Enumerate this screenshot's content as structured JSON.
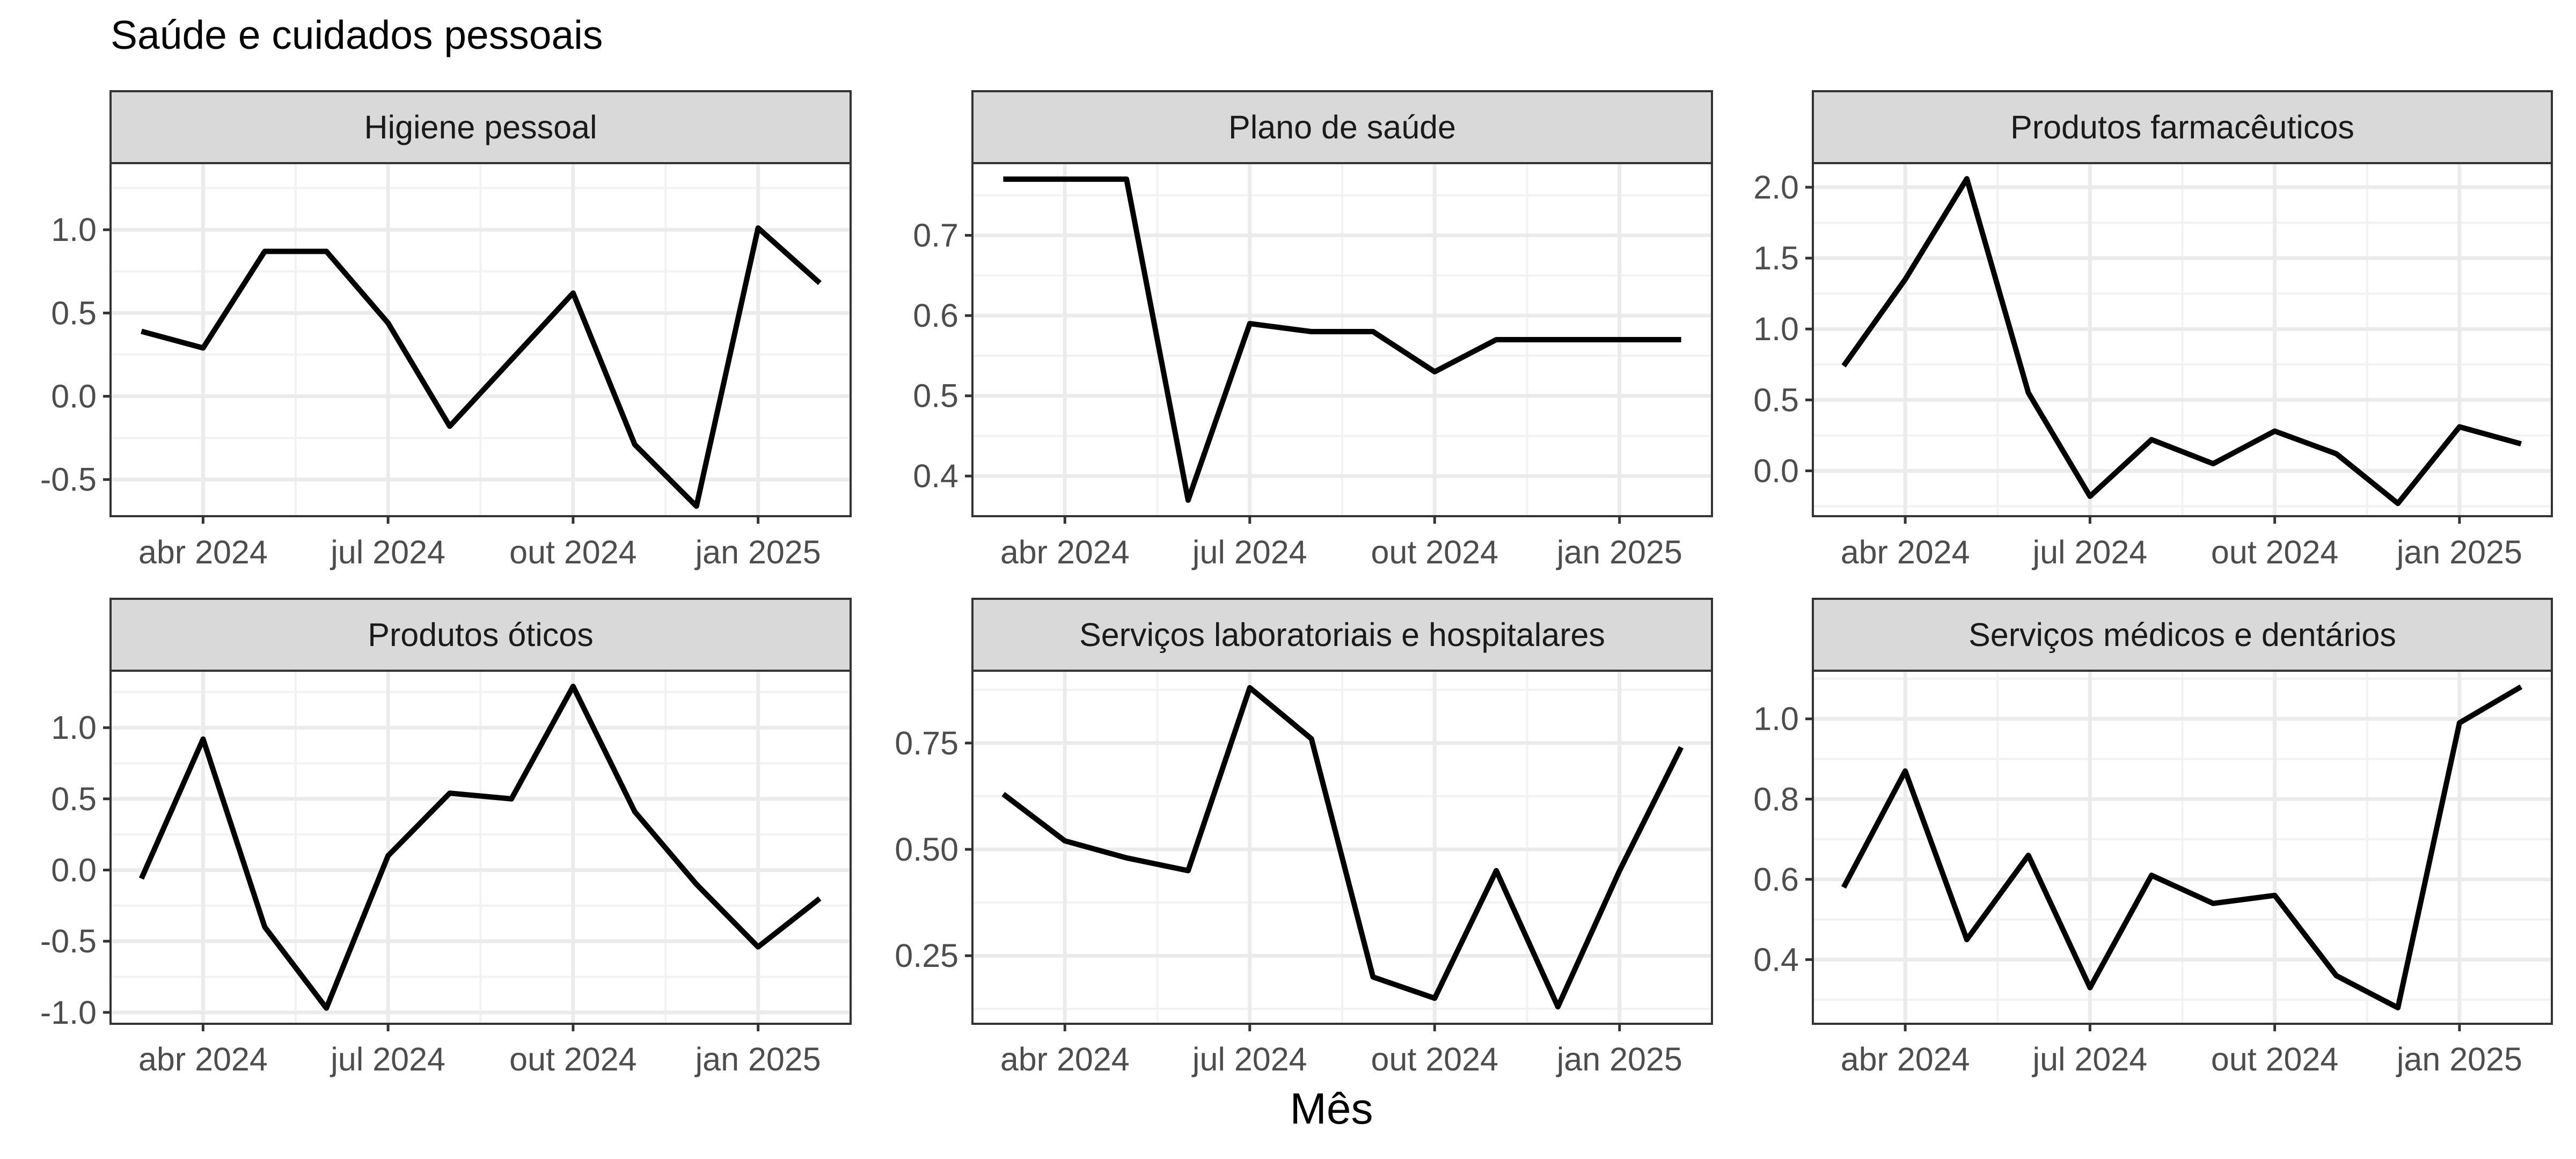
{
  "title": "Saúde e cuidados pessoais",
  "chart_data": {
    "type": "line",
    "title": "Saúde e cuidados pessoais",
    "xlabel": "Mês",
    "ylabel": "",
    "x": [
      "2024-03",
      "2024-04",
      "2024-05",
      "2024-06",
      "2024-07",
      "2024-08",
      "2024-09",
      "2024-10",
      "2024-11",
      "2024-12",
      "2025-01",
      "2025-02"
    ],
    "x_tick_labels": [
      "abr 2024",
      "jul 2024",
      "out 2024",
      "jan 2025"
    ],
    "x_tick_dates": [
      "2024-04",
      "2024-07",
      "2024-10",
      "2025-01"
    ],
    "grid": true,
    "line_color": "#000000",
    "panels": [
      {
        "name": "Higiene pessoal",
        "values": [
          0.39,
          0.29,
          0.87,
          0.87,
          0.44,
          -0.18,
          0.22,
          0.62,
          -0.29,
          -0.66,
          1.01,
          0.68
        ],
        "ylim": [
          -0.72,
          1.4
        ],
        "yticks": [
          -0.5,
          0.0,
          0.5,
          1.0
        ],
        "ytick_labels": [
          "-0.5",
          "0.0",
          "0.5",
          "1.0"
        ]
      },
      {
        "name": "Plano de saúde",
        "values": [
          0.77,
          0.77,
          0.77,
          0.37,
          0.59,
          0.58,
          0.58,
          0.53,
          0.57,
          0.57,
          0.57,
          0.57
        ],
        "ylim": [
          0.35,
          0.79
        ],
        "yticks": [
          0.4,
          0.5,
          0.6,
          0.7
        ],
        "ytick_labels": [
          "0.4",
          "0.5",
          "0.6",
          "0.7"
        ]
      },
      {
        "name": "Produtos farmacêuticos",
        "values": [
          0.74,
          1.35,
          2.06,
          0.55,
          -0.18,
          0.22,
          0.05,
          0.28,
          0.12,
          -0.23,
          0.31,
          0.19
        ],
        "ylim": [
          -0.32,
          2.17
        ],
        "yticks": [
          0.0,
          0.5,
          1.0,
          1.5,
          2.0
        ],
        "ytick_labels": [
          "0.0",
          "0.5",
          "1.0",
          "1.5",
          "2.0"
        ]
      },
      {
        "name": "Produtos óticos",
        "values": [
          -0.06,
          0.92,
          -0.4,
          -0.97,
          0.1,
          0.54,
          0.5,
          1.29,
          0.41,
          -0.1,
          -0.54,
          -0.2
        ],
        "ylim": [
          -1.08,
          1.4
        ],
        "yticks": [
          -1.0,
          -0.5,
          0.0,
          0.5,
          1.0
        ],
        "ytick_labels": [
          "-1.0",
          "-0.5",
          "0.0",
          "0.5",
          "1.0"
        ]
      },
      {
        "name": "Serviços laboratoriais e hospitalares",
        "values": [
          0.63,
          0.52,
          0.48,
          0.45,
          0.88,
          0.76,
          0.2,
          0.15,
          0.45,
          0.13,
          0.45,
          0.74
        ],
        "ylim": [
          0.09,
          0.92
        ],
        "yticks": [
          0.25,
          0.5,
          0.75
        ],
        "ytick_labels": [
          "0.25",
          "0.50",
          "0.75"
        ]
      },
      {
        "name": "Serviços médicos e dentários",
        "values": [
          0.58,
          0.87,
          0.45,
          0.66,
          0.33,
          0.61,
          0.54,
          0.56,
          0.36,
          0.28,
          0.99,
          1.08
        ],
        "ylim": [
          0.24,
          1.12
        ],
        "yticks": [
          0.4,
          0.6,
          0.8,
          1.0
        ],
        "ytick_labels": [
          "0.4",
          "0.6",
          "0.8",
          "1.0"
        ]
      }
    ]
  }
}
